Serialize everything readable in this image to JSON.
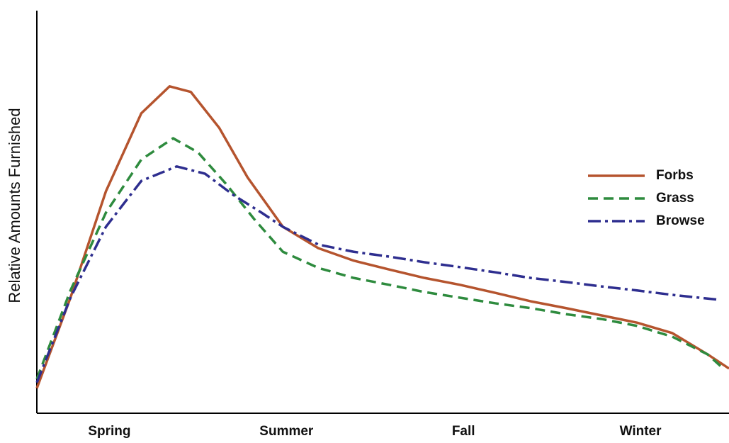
{
  "chart_data": {
    "type": "line",
    "ylabel": "Relative Amounts Furnished",
    "xlim": [
      0.59,
      4.5
    ],
    "ylim": [
      0,
      100
    ],
    "xticks": [
      {
        "value": 1,
        "label": "Spring"
      },
      {
        "value": 2,
        "label": "Summer"
      },
      {
        "value": 3,
        "label": "Fall"
      },
      {
        "value": 4,
        "label": "Winter"
      }
    ],
    "legend": "right",
    "series": [
      {
        "name": "Forbs",
        "color": "#b5542e",
        "dash": "solid",
        "x": [
          0.59,
          0.78,
          0.98,
          1.18,
          1.34,
          1.46,
          1.62,
          1.78,
          1.98,
          2.18,
          2.38,
          2.58,
          2.78,
          2.98,
          3.18,
          3.38,
          3.58,
          3.78,
          3.98,
          4.18,
          4.38,
          4.5
        ],
        "values": [
          6.2,
          28.7,
          55.1,
          74.5,
          81.2,
          79.8,
          70.9,
          58.6,
          46.3,
          41.0,
          37.9,
          35.7,
          33.6,
          31.9,
          29.9,
          27.8,
          26.1,
          24.3,
          22.5,
          19.9,
          14.6,
          11.1
        ]
      },
      {
        "name": "Grass",
        "color": "#2e8b3e",
        "dash": "dashed",
        "x": [
          0.59,
          0.78,
          0.98,
          1.18,
          1.36,
          1.5,
          1.66,
          1.82,
          1.98,
          2.18,
          2.38,
          2.58,
          2.78,
          2.98,
          3.18,
          3.38,
          3.58,
          3.78,
          3.98,
          4.18,
          4.38,
          4.46
        ],
        "values": [
          8.5,
          30.5,
          49.8,
          63.0,
          68.3,
          64.8,
          56.9,
          48.1,
          40.1,
          36.1,
          33.6,
          31.9,
          30.1,
          28.7,
          27.3,
          26.1,
          24.6,
          23.4,
          21.7,
          19.0,
          14.6,
          11.4
        ]
      },
      {
        "name": "Browse",
        "color": "#2e2e8f",
        "dash": "dashdot",
        "x": [
          0.59,
          0.78,
          0.98,
          1.18,
          1.38,
          1.54,
          1.7,
          1.86,
          1.98,
          2.18,
          2.38,
          2.58,
          2.78,
          2.98,
          3.18,
          3.38,
          3.58,
          3.78,
          3.98,
          4.18,
          4.44
        ],
        "values": [
          7.6,
          28.7,
          46.3,
          57.7,
          61.3,
          59.5,
          54.2,
          49.8,
          46.3,
          41.9,
          40.1,
          38.9,
          37.5,
          36.3,
          35.0,
          33.6,
          32.6,
          31.5,
          30.5,
          29.4,
          28.2
        ]
      }
    ]
  }
}
